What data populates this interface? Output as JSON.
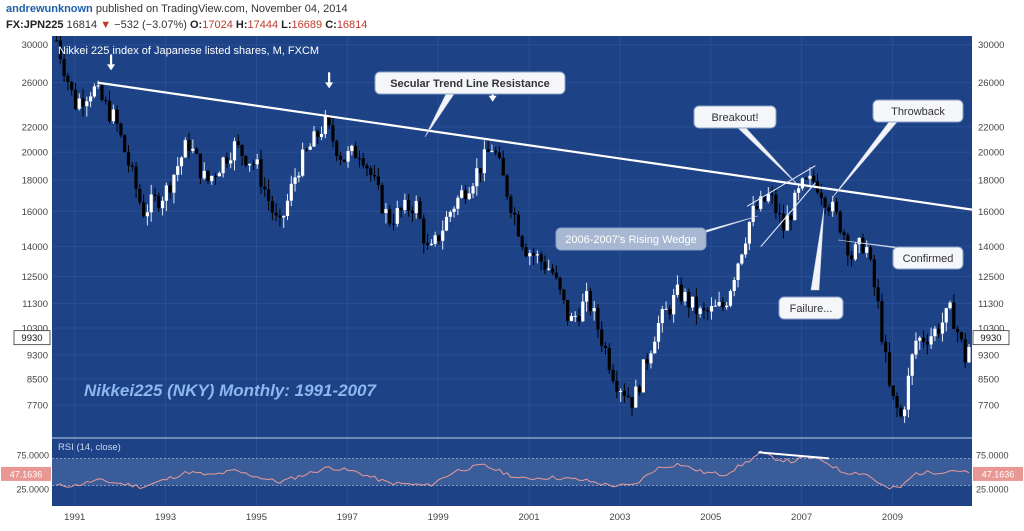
{
  "header": {
    "author": "andrewunknown",
    "published_text": "published on TradingView.com, November 04, 2014",
    "symbol": "FX:JPN225",
    "last": "16814",
    "change_arrow": "▼",
    "change": "−532 (−3.07%)",
    "open_label": "O:",
    "open": "17024",
    "high_label": "H:",
    "high": "17444",
    "low_label": "L:",
    "low": "16689",
    "close_label": "C:",
    "close": "16814"
  },
  "chart_data": [
    {
      "type": "candlestick",
      "title": "Nikkei 225 index of Japanese listed shares, M, FXCM",
      "yscale": "log",
      "ylim": [
        6800,
        31000
      ],
      "x_range": [
        1990.5,
        2010.75
      ],
      "y_ticks": [
        30000,
        26000,
        22000,
        20000,
        18000,
        16000,
        14000,
        12500,
        11300,
        10300,
        9300,
        8500,
        7700
      ],
      "x_ticks": [
        "1991",
        "1993",
        "1995",
        "1997",
        "1999",
        "2001",
        "2003",
        "2005",
        "2007",
        "2009"
      ],
      "last_price": "9930",
      "series": [
        {
          "anchors": [
            [
              1990.6,
              30500
            ],
            [
              1991.0,
              24000
            ],
            [
              1991.4,
              25500
            ],
            [
              1991.9,
              22500
            ],
            [
              1992.5,
              16000
            ],
            [
              1993.0,
              17200
            ],
            [
              1993.5,
              20800
            ],
            [
              1993.9,
              17800
            ],
            [
              1994.5,
              20500
            ],
            [
              1995.0,
              19000
            ],
            [
              1995.5,
              14900
            ],
            [
              1995.9,
              18800
            ],
            [
              1996.5,
              22300
            ],
            [
              1996.9,
              19500
            ],
            [
              1997.3,
              20200
            ],
            [
              1997.9,
              15500
            ],
            [
              1998.5,
              16500
            ],
            [
              1998.8,
              13500
            ],
            [
              1999.3,
              16200
            ],
            [
              1999.9,
              18800
            ],
            [
              2000.2,
              20500
            ],
            [
              2000.9,
              14000
            ],
            [
              2001.5,
              12800
            ],
            [
              2001.9,
              10500
            ],
            [
              2002.3,
              11500
            ],
            [
              2002.9,
              8500
            ],
            [
              2003.3,
              7800
            ],
            [
              2003.8,
              10300
            ],
            [
              2004.3,
              11800
            ],
            [
              2004.8,
              10800
            ],
            [
              2005.3,
              11200
            ],
            [
              2005.9,
              15800
            ],
            [
              2006.3,
              17000
            ],
            [
              2006.6,
              15000
            ],
            [
              2007.0,
              17500
            ],
            [
              2007.3,
              18000
            ],
            [
              2007.6,
              16500
            ],
            [
              2007.9,
              15000
            ],
            [
              2008.1,
              13500
            ],
            [
              2008.4,
              14300
            ],
            [
              2008.7,
              11000
            ],
            [
              2008.95,
              8000
            ],
            [
              2009.2,
              7300
            ],
            [
              2009.5,
              9800
            ],
            [
              2009.9,
              10100
            ],
            [
              2010.3,
              11000
            ],
            [
              2010.6,
              9200
            ],
            [
              2010.75,
              9930
            ]
          ]
        }
      ],
      "annotations": [
        {
          "text": "Secular Trend Line Resistance"
        },
        {
          "text": "Breakout!"
        },
        {
          "text": "Throwback"
        },
        {
          "text": "2006-2007's Rising Wedge"
        },
        {
          "text": "Confirmed"
        },
        {
          "text": "Failure..."
        },
        {
          "text": "Nikkei225 (NKY) Monthly: 1991-2007"
        }
      ],
      "arrows_at": [
        1991.8,
        1996.6,
        2000.2
      ],
      "trend_line": [
        [
          1991.5,
          26000
        ],
        [
          2010.75,
          16100
        ]
      ],
      "wedge": {
        "upper": [
          [
            2005.8,
            16300
          ],
          [
            2007.3,
            19000
          ]
        ],
        "lower": [
          [
            2006.1,
            14000
          ],
          [
            2007.3,
            17800
          ]
        ]
      },
      "colors": {
        "background": "#1d4286",
        "up": "#ffffff",
        "down": "#000000",
        "trend": "#ffffff"
      }
    },
    {
      "type": "line",
      "title": "RSI (14, close)",
      "ylim": [
        0,
        100
      ],
      "y_ticks": [
        "75.0000",
        "25.0000"
      ],
      "last_value": "47.1636",
      "levels": [
        70,
        30
      ],
      "series": [
        {
          "anchors": [
            [
              1990.6,
              30
            ],
            [
              1991.0,
              30
            ],
            [
              1991.5,
              38
            ],
            [
              1992.5,
              28
            ],
            [
              1993.5,
              50
            ],
            [
              1994.0,
              45
            ],
            [
              1994.5,
              52
            ],
            [
              1995.5,
              35
            ],
            [
              1996.0,
              45
            ],
            [
              1996.6,
              57
            ],
            [
              1997.2,
              50
            ],
            [
              1997.9,
              34
            ],
            [
              1998.8,
              30
            ],
            [
              1999.4,
              52
            ],
            [
              2000.0,
              60
            ],
            [
              2000.8,
              40
            ],
            [
              2001.5,
              42
            ],
            [
              2002.2,
              38
            ],
            [
              2002.8,
              30
            ],
            [
              2003.3,
              30
            ],
            [
              2003.8,
              55
            ],
            [
              2004.3,
              62
            ],
            [
              2004.8,
              50
            ],
            [
              2005.3,
              46
            ],
            [
              2005.8,
              65
            ],
            [
              2006.1,
              78
            ],
            [
              2006.4,
              70
            ],
            [
              2006.8,
              65
            ],
            [
              2007.1,
              72
            ],
            [
              2007.5,
              66
            ],
            [
              2007.9,
              50
            ],
            [
              2008.4,
              48
            ],
            [
              2008.9,
              25
            ],
            [
              2009.2,
              28
            ],
            [
              2009.5,
              48
            ],
            [
              2010.0,
              50
            ],
            [
              2010.4,
              53
            ],
            [
              2010.75,
              47
            ]
          ]
        }
      ],
      "divergence_line": [
        [
          2006.05,
          79
        ],
        [
          2007.6,
          70
        ]
      ],
      "colors": {
        "line": "#e79a99",
        "band": "#3a5c98",
        "divergence": "#ffffff"
      }
    }
  ]
}
